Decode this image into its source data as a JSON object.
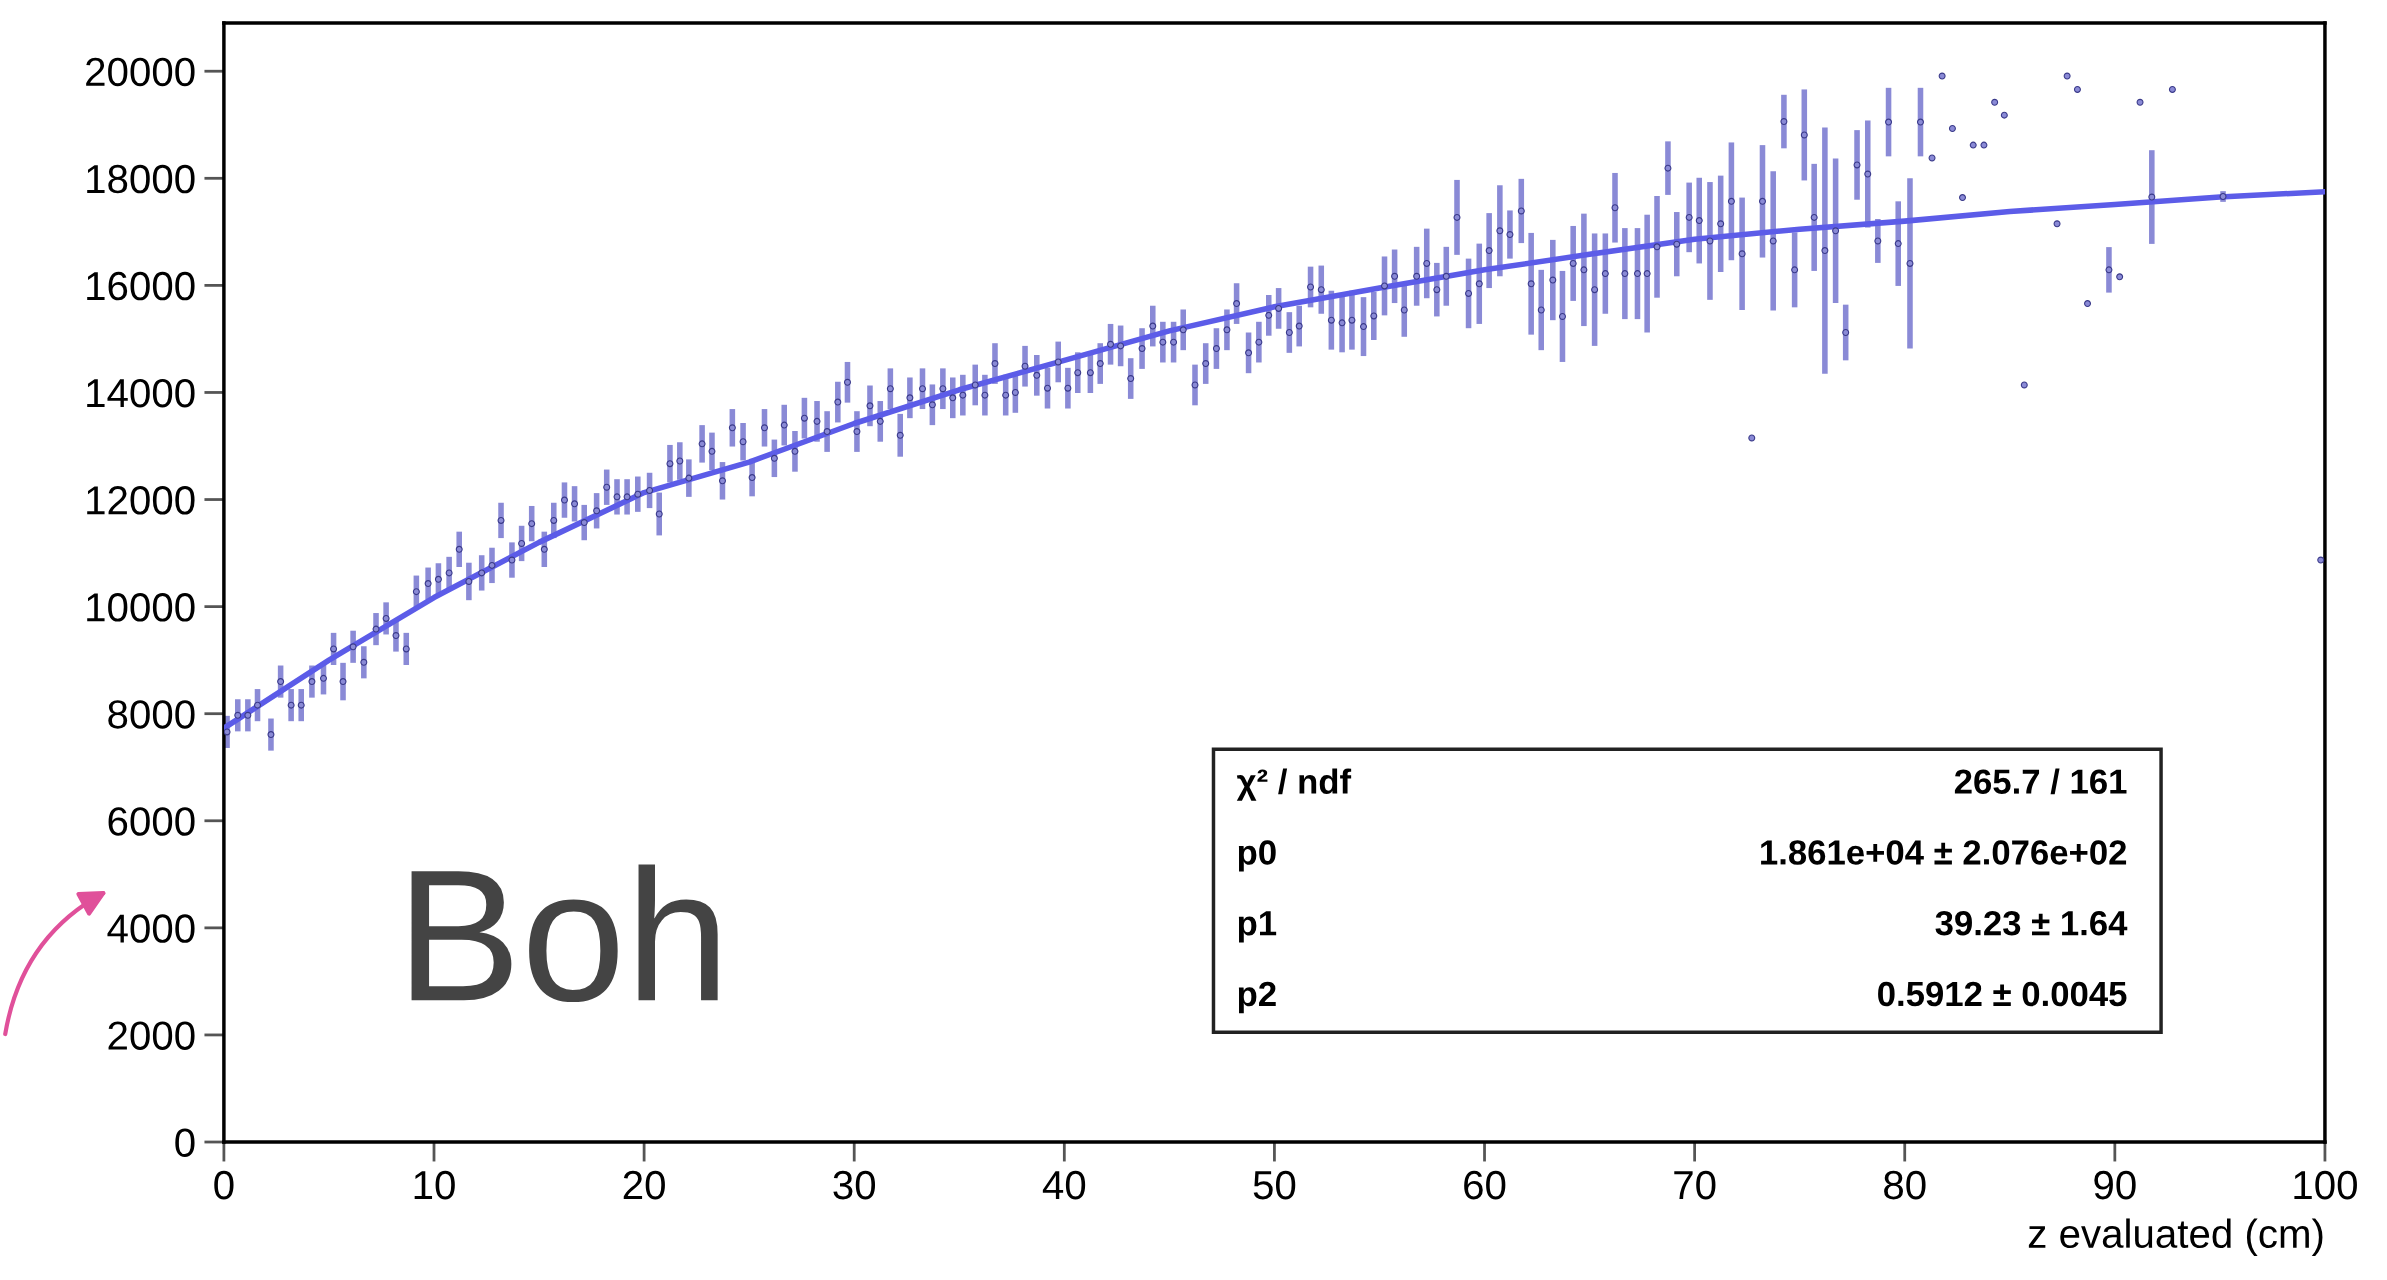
{
  "chart_data": {
    "type": "scatter",
    "xlabel": "z evaluated (cm)",
    "xlim": [
      0,
      100
    ],
    "xticks": [
      0,
      10,
      20,
      30,
      40,
      50,
      60,
      70,
      80,
      90,
      100
    ],
    "ylim": [
      0,
      20900
    ],
    "yticks": [
      0,
      2000,
      4000,
      6000,
      8000,
      10000,
      12000,
      14000,
      16000,
      18000,
      20000
    ],
    "grid": false,
    "legend": false,
    "annotations": [
      "Boh",
      "χ² / ndf",
      "265.7 / 161",
      "p0",
      "1.861e+04 ± 2.076e+02",
      "p1",
      "39.23 ± 1.64",
      "p2",
      "0.5912 ± 0.0045"
    ],
    "series": [
      {
        "type": "scatter",
        "color": "#8a8ad6",
        "marker": "circle",
        "x": [
          0.15,
          0.66,
          1.14,
          1.6,
          2.24,
          2.7,
          3.2,
          3.68,
          4.19,
          4.74,
          5.22,
          5.67,
          6.15,
          6.66,
          7.24,
          7.72,
          8.19,
          8.68,
          9.16,
          9.72,
          10.21,
          10.72,
          11.2,
          11.66,
          12.27,
          12.76,
          13.19,
          13.71,
          14.17,
          14.65,
          15.25,
          15.7,
          16.21,
          16.69,
          17.15,
          17.74,
          18.22,
          18.71,
          19.19,
          19.7,
          20.26,
          20.72,
          21.23,
          21.7,
          22.13,
          22.76,
          23.23,
          23.73,
          24.2,
          24.71,
          25.14,
          25.73,
          26.2,
          26.67,
          27.18,
          27.63,
          28.23,
          28.71,
          29.22,
          29.68,
          30.13,
          30.75,
          31.24,
          31.72,
          32.19,
          32.65,
          33.25,
          33.72,
          34.22,
          34.69,
          35.17,
          35.76,
          36.22,
          36.7,
          37.21,
          37.67,
          38.13,
          38.69,
          39.2,
          39.71,
          40.17,
          40.64,
          41.24,
          41.71,
          42.2,
          42.68,
          43.16,
          43.7,
          44.21,
          44.69,
          45.2,
          45.66,
          46.22,
          46.73,
          47.24,
          47.74,
          48.2,
          48.77,
          49.26,
          49.73,
          50.2,
          50.71,
          51.18,
          51.72,
          52.23,
          52.71,
          53.22,
          53.69,
          54.24,
          54.73,
          55.24,
          55.72,
          56.18,
          56.77,
          57.25,
          57.73,
          58.18,
          58.69,
          59.24,
          59.75,
          60.22,
          60.73,
          61.21,
          61.75,
          62.22,
          62.7,
          63.25,
          63.71,
          64.22,
          64.73,
          65.24,
          65.75,
          66.21,
          66.68,
          67.28,
          67.74,
          68.21,
          68.73,
          69.15,
          69.74,
          70.22,
          70.73,
          71.24,
          71.75,
          72.26,
          72.72,
          73.23,
          73.74,
          74.25,
          74.76,
          75.22,
          75.69,
          76.2,
          76.71,
          77.19,
          77.73,
          78.24,
          78.72,
          79.23,
          79.69,
          80.25,
          80.75,
          81.3,
          81.78,
          82.27,
          82.75,
          83.26,
          83.77,
          84.28,
          84.74,
          85.69,
          87.25,
          87.73,
          88.22,
          88.7,
          89.72,
          90.23,
          91.2,
          91.76,
          92.74,
          95.15,
          99.8
        ],
        "values": [
          7660,
          7970,
          7970,
          8160,
          7610,
          8600,
          8160,
          8160,
          8600,
          8660,
          9210,
          8600,
          9250,
          8960,
          9580,
          9780,
          9460,
          9210,
          10280,
          10430,
          10510,
          10630,
          11070,
          10470,
          10630,
          10770,
          11610,
          10870,
          11180,
          11550,
          11070,
          11610,
          11990,
          11920,
          11570,
          11790,
          12230,
          12050,
          12050,
          12100,
          12170,
          11730,
          12670,
          12720,
          12400,
          13040,
          12900,
          12350,
          13340,
          13080,
          12410,
          13340,
          12770,
          13390,
          12900,
          13520,
          13460,
          13270,
          13820,
          14190,
          13270,
          13750,
          13460,
          14070,
          13200,
          13900,
          14070,
          13770,
          14070,
          13900,
          13950,
          14140,
          13950,
          14540,
          13950,
          14000,
          14490,
          14320,
          14080,
          14570,
          14080,
          14370,
          14370,
          14540,
          14900,
          14870,
          14260,
          14820,
          15240,
          14940,
          14940,
          15170,
          14140,
          14540,
          14820,
          15170,
          15660,
          14740,
          14940,
          15440,
          15570,
          15120,
          15240,
          15970,
          15920,
          15350,
          15300,
          15350,
          15230,
          15430,
          15990,
          16170,
          15540,
          16170,
          16410,
          15920,
          16170,
          17270,
          15850,
          16030,
          16650,
          17020,
          16950,
          17390,
          16030,
          15540,
          16100,
          15420,
          16410,
          16290,
          15920,
          16220,
          17450,
          16220,
          16220,
          16220,
          16720,
          18190,
          16770,
          17270,
          17210,
          16830,
          17150,
          17570,
          16590,
          13150,
          17570,
          16830,
          19060,
          16290,
          18810,
          17270,
          16650,
          17020,
          15120,
          18250,
          18080,
          16830,
          19050,
          16780,
          16410,
          19050,
          18380,
          19910,
          18930,
          17640,
          18620,
          18620,
          19420,
          19180,
          14140,
          17150,
          19910,
          19660,
          15660,
          16290,
          16160,
          19420,
          17650,
          19660,
          17660,
          10870
        ],
        "errors": [
          300,
          300,
          300,
          300,
          300,
          300,
          300,
          300,
          300,
          300,
          300,
          350,
          300,
          300,
          300,
          300,
          300,
          300,
          300,
          300,
          300,
          300,
          330,
          350,
          330,
          330,
          330,
          330,
          330,
          330,
          330,
          330,
          330,
          330,
          330,
          330,
          330,
          330,
          330,
          330,
          330,
          400,
          350,
          350,
          350,
          350,
          350,
          350,
          350,
          350,
          350,
          350,
          350,
          380,
          380,
          380,
          380,
          380,
          380,
          380,
          380,
          380,
          380,
          380,
          400,
          380,
          380,
          380,
          380,
          380,
          380,
          380,
          380,
          380,
          380,
          380,
          380,
          380,
          380,
          380,
          380,
          380,
          380,
          380,
          380,
          380,
          380,
          380,
          380,
          380,
          380,
          380,
          380,
          380,
          380,
          380,
          380,
          380,
          380,
          380,
          380,
          380,
          380,
          380,
          450,
          550,
          550,
          550,
          550,
          450,
          550,
          500,
          500,
          550,
          650,
          500,
          550,
          700,
          650,
          750,
          700,
          850,
          450,
          600,
          950,
          750,
          750,
          850,
          700,
          1050,
          1050,
          750,
          650,
          850,
          850,
          1100,
          950,
          500,
          600,
          650,
          800,
          1100,
          900,
          1100,
          1050,
          null,
          1050,
          1300,
          500,
          700,
          850,
          1000,
          2300,
          1350,
          520,
          650,
          1000,
          410,
          640,
          790,
          1590,
          640,
          null,
          null,
          null,
          null,
          null,
          null,
          null,
          null,
          null,
          null,
          null,
          null,
          null,
          425,
          null,
          null,
          875,
          null,
          100,
          null
        ]
      },
      {
        "type": "line",
        "color": "#5c5ce8",
        "x": [
          0,
          5,
          10,
          15,
          20,
          25,
          30,
          35,
          40,
          45,
          50,
          55,
          60,
          65,
          70,
          75,
          80,
          85,
          90,
          95,
          100
        ],
        "values": [
          7730,
          9000,
          10170,
          11200,
          12130,
          12700,
          13420,
          14050,
          14600,
          15150,
          15600,
          15950,
          16290,
          16580,
          16860,
          17050,
          17200,
          17380,
          17510,
          17650,
          17750
        ]
      }
    ]
  }
}
